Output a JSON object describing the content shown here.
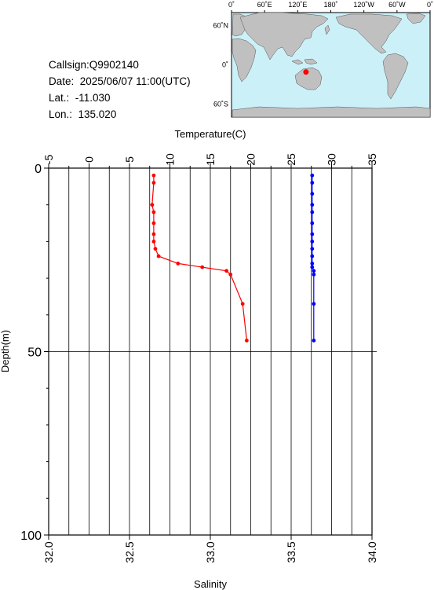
{
  "header": {
    "callsign": "Callsign:Q9902140",
    "date": "Date:  2025/06/07 11:00(UTC)",
    "lat": "Lat.:  -11.030",
    "lon": "Lon.:  135.020"
  },
  "map": {
    "lon_ticks": [
      "0˚",
      "60˚E",
      "120˚E",
      "180˚",
      "120˚W",
      "60˚W",
      "0˚"
    ],
    "lat_ticks": [
      "60˚N",
      "0˚",
      "60˚S"
    ],
    "ocean_color": "#ccf0f7",
    "land_color": "#c0c0c0",
    "marker_color": "#ff0000",
    "marker": {
      "lon": 135.02,
      "lat": -11.03
    }
  },
  "chart_data": {
    "type": "line",
    "ylabel": "Depth(m)",
    "y_ticks": [
      "0",
      "50",
      "100"
    ],
    "ylim": [
      0,
      100
    ],
    "y_inverted": true,
    "top_axis": {
      "label": "Temperature(C)",
      "ticks": [
        "-5",
        "0",
        "5",
        "10",
        "15",
        "20",
        "25",
        "30",
        "35"
      ],
      "lim": [
        -5,
        35
      ]
    },
    "bottom_axis": {
      "label": "Salinity",
      "ticks": [
        "32.0",
        "32.5",
        "33.0",
        "33.5",
        "34.0"
      ],
      "lim": [
        32.0,
        34.0
      ]
    },
    "grid": true,
    "series": [
      {
        "axis": "top",
        "color": "#ff0000",
        "points": [
          [
            8.0,
            2
          ],
          [
            8.0,
            4
          ],
          [
            7.8,
            10
          ],
          [
            8.0,
            12
          ],
          [
            8.0,
            15
          ],
          [
            8.0,
            18
          ],
          [
            8.0,
            20
          ],
          [
            8.2,
            22
          ],
          [
            8.6,
            24
          ],
          [
            11.0,
            26
          ],
          [
            14.0,
            27
          ],
          [
            17.0,
            28
          ],
          [
            17.5,
            29
          ],
          [
            19.0,
            37
          ],
          [
            19.5,
            47
          ]
        ]
      },
      {
        "axis": "bottom",
        "color": "#0000ff",
        "points": [
          [
            33.63,
            2
          ],
          [
            33.63,
            4
          ],
          [
            33.63,
            7
          ],
          [
            33.63,
            10
          ],
          [
            33.63,
            12
          ],
          [
            33.63,
            15
          ],
          [
            33.63,
            18
          ],
          [
            33.63,
            20
          ],
          [
            33.63,
            22
          ],
          [
            33.63,
            24
          ],
          [
            33.63,
            26
          ],
          [
            33.63,
            27
          ],
          [
            33.64,
            28
          ],
          [
            33.64,
            29
          ],
          [
            33.64,
            37
          ],
          [
            33.64,
            47
          ]
        ]
      }
    ]
  }
}
